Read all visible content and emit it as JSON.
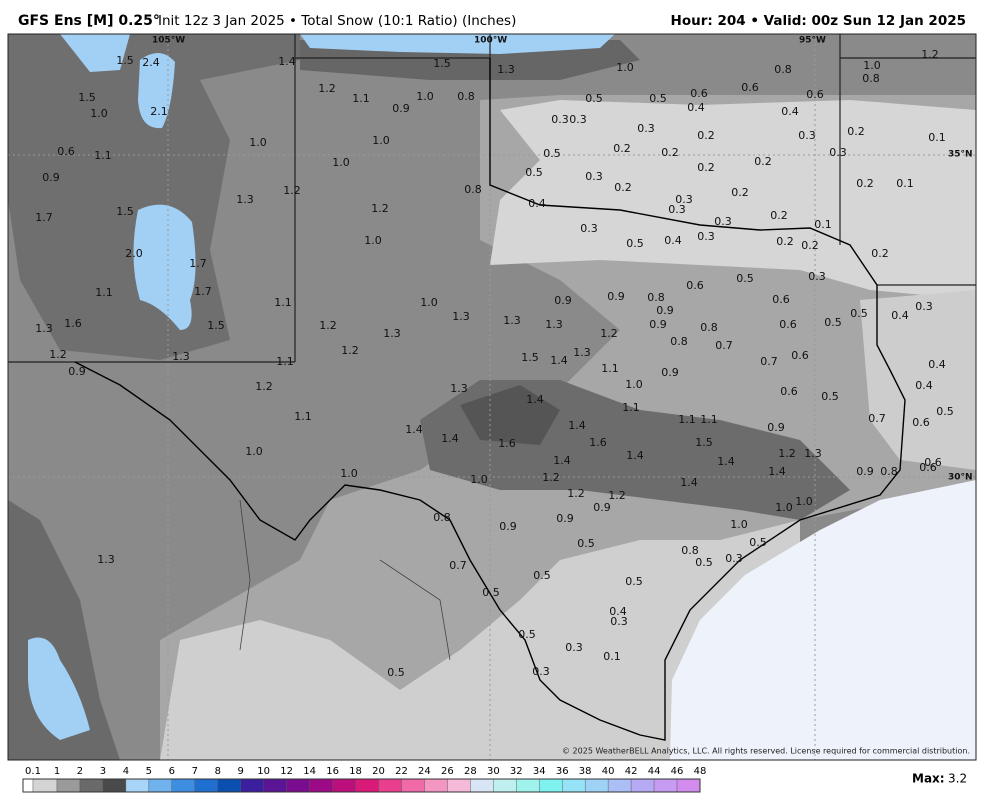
{
  "header": {
    "model": "GFS Ens [M] 0.25°",
    "description": "Init 12z 3 Jan 2025 • Total Snow (10:1 Ratio) (Inches)",
    "valid": "Hour: 204 • Valid: 00z Sun 12 Jan 2025"
  },
  "map": {
    "longitudes": [
      "105°W",
      "100°W",
      "95°W"
    ],
    "latitudes": [
      "35°N",
      "30°N"
    ],
    "snow_totals": [
      "1.5",
      "2.4",
      "1.4",
      "1.5",
      "1.3",
      "1.0",
      "0.8",
      "1.0",
      "1.2",
      "0.8",
      "1.5",
      "1.0",
      "2.1",
      "1.2",
      "1.1",
      "0.9",
      "1.0",
      "0.8",
      "0.5",
      "0.5",
      "0.6",
      "0.6",
      "0.6",
      "0.4",
      "0.4",
      "0.3",
      "0.3",
      "0.3",
      "0.2",
      "0.3",
      "0.2",
      "0.1",
      "1.0",
      "1.0",
      "0.6",
      "1.1",
      "0.5",
      "0.2",
      "0.2",
      "0.2",
      "0.2",
      "0.3",
      "1.0",
      "0.9",
      "0.5",
      "0.3",
      "0.2",
      "0.3",
      "0.2",
      "0.2",
      "0.1",
      "1.2",
      "0.8",
      "1.3",
      "0.4",
      "0.3",
      "0.3",
      "0.2",
      "0.1",
      "1.5",
      "1.2",
      "1.7",
      "0.3",
      "0.3",
      "0.4",
      "0.5",
      "0.2",
      "0.2",
      "0.2",
      "1.0",
      "2.0",
      "1.7",
      "0.3",
      "0.5",
      "0.6",
      "1.1",
      "1.7",
      "1.1",
      "1.0",
      "0.9",
      "0.9",
      "0.8",
      "0.6",
      "0.3",
      "1.3",
      "1.3",
      "1.3",
      "1.2",
      "1.5",
      "1.6",
      "1.3",
      "0.9",
      "0.9",
      "0.8",
      "0.6",
      "0.5",
      "0.5",
      "0.4",
      "1.3",
      "1.2",
      "0.8",
      "0.7",
      "1.3",
      "1.5",
      "1.4",
      "1.2",
      "1.3",
      "1.2",
      "1.1",
      "0.7",
      "0.6",
      "0.4",
      "0.9",
      "1.1",
      "0.9",
      "1.0",
      "1.2",
      "1.3",
      "0.6",
      "0.5",
      "0.4",
      "1.4",
      "1.1",
      "0.5",
      "1.1",
      "1.1",
      "1.1",
      "0.7",
      "0.6",
      "1.4",
      "1.4",
      "0.9",
      "1.4",
      "1.6",
      "1.6",
      "1.5",
      "1.0",
      "1.4",
      "1.2",
      "1.3",
      "1.4",
      "1.4",
      "0.6",
      "1.0",
      "1.0",
      "1.2",
      "1.4",
      "0.9",
      "0.8",
      "0.6",
      "1.4",
      "1.2",
      "1.2",
      "1.0",
      "0.9",
      "1.0",
      "0.8",
      "0.9",
      "0.9",
      "1.0",
      "0.5",
      "0.5",
      "0.8",
      "1.3",
      "0.5",
      "0.3",
      "0.7",
      "0.5",
      "0.5",
      "0.5",
      "0.4",
      "0.3",
      "0.5",
      "0.3",
      "0.1",
      "0.3",
      "0.5"
    ]
  },
  "legend": {
    "ticks": [
      0.1,
      1,
      2,
      3,
      4,
      5,
      6,
      7,
      8,
      9,
      10,
      12,
      14,
      16,
      18,
      20,
      22,
      24,
      26,
      28,
      30,
      32,
      34,
      36,
      38,
      40,
      42,
      44,
      46,
      48
    ],
    "max_label": "Max:",
    "max_value": 3.2
  },
  "copyright": "© 2025 WeatherBELL Analytics, LLC. All rights reserved. License required for commercial distribution."
}
